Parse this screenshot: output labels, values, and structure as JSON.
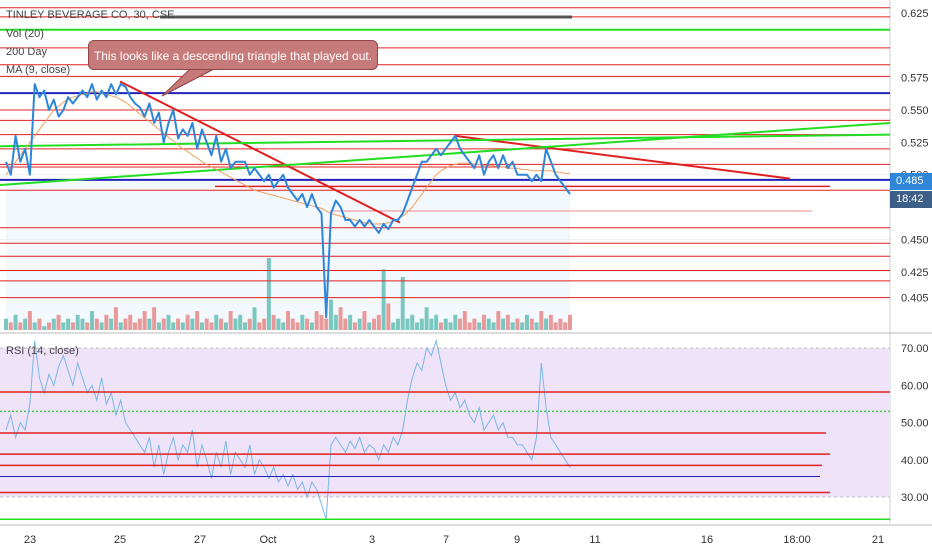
{
  "header": {
    "symbol_line": "TINLEY BEVERAGE CO, 30, CSE",
    "vol_label": "Vol (20)",
    "ma200_label": "200 Day",
    "ma9_label": "MA (9, close)",
    "rsi_label": "RSI (14, close)"
  },
  "annotation": {
    "text": "This looks like a descending triangle that played out."
  },
  "price_badges": {
    "last_price": "0.485",
    "countdown": "18:42"
  },
  "colors": {
    "price": "#2f86d8",
    "ma": "#f0a060",
    "hline_red": "#e02020",
    "hline_green": "#22dd22",
    "hline_blue": "#2222bb",
    "vol_up": "#7ac7c0",
    "vol_down": "#e89a9a",
    "rsi": "#7ab6e6",
    "rsi_band": "#efe3fa",
    "badge_blue": "#2f86d8",
    "badge_dark": "#3d5e86"
  },
  "chart_data": [
    {
      "type": "line",
      "title": "TINLEY BEVERAGE CO, 30, CSE",
      "ylim": [
        0.38,
        0.635
      ],
      "y_ticks": [
        0.625,
        0.575,
        0.55,
        0.525,
        0.5,
        0.45,
        0.425,
        0.405
      ],
      "x_ticks": [
        "23",
        "25",
        "27",
        "Oct",
        "3",
        "7",
        "9",
        "11",
        "16",
        "18:00",
        "21"
      ],
      "series": [
        {
          "values": [
            0.51,
            0.5,
            0.53,
            0.51,
            0.52,
            0.5,
            0.57,
            0.56,
            0.565,
            0.55,
            0.558,
            0.545,
            0.55,
            0.56,
            0.555,
            0.56,
            0.565,
            0.56,
            0.57,
            0.558,
            0.565,
            0.56,
            0.57,
            0.562,
            0.57,
            0.568,
            0.56,
            0.555,
            0.552,
            0.545,
            0.555,
            0.54,
            0.548,
            0.525,
            0.54,
            0.55,
            0.528,
            0.535,
            0.53,
            0.54,
            0.52,
            0.535,
            0.525,
            0.515,
            0.53,
            0.51,
            0.52,
            0.505,
            0.51,
            0.51,
            0.51,
            0.5,
            0.505,
            0.5,
            0.495,
            0.5,
            0.49,
            0.495,
            0.5,
            0.49,
            0.485,
            0.48,
            0.485,
            0.475,
            0.485,
            0.475,
            0.47,
            0.39,
            0.47,
            0.48,
            0.475,
            0.465,
            0.465,
            0.46,
            0.465,
            0.46,
            0.465,
            0.46,
            0.455,
            0.462,
            0.458,
            0.465,
            0.465,
            0.47,
            0.48,
            0.49,
            0.5,
            0.51,
            0.51,
            0.515,
            0.52,
            0.515,
            0.52,
            0.525,
            0.53,
            0.52,
            0.515,
            0.51,
            0.505,
            0.515,
            0.5,
            0.51,
            0.515,
            0.505,
            0.515,
            0.505,
            0.51,
            0.5,
            0.5,
            0.5,
            0.495,
            0.5,
            0.495,
            0.52,
            0.51,
            0.5,
            0.495,
            0.49,
            0.485
          ]
        },
        {
          "values": [
            0.5,
            0.505,
            0.51,
            0.515,
            0.52,
            0.525,
            0.53,
            0.535,
            0.54,
            0.545,
            0.55,
            0.553,
            0.556,
            0.558,
            0.56,
            0.561,
            0.562,
            0.563,
            0.564,
            0.564,
            0.563,
            0.562,
            0.561,
            0.56,
            0.558,
            0.556,
            0.553,
            0.55,
            0.547,
            0.544,
            0.541,
            0.538,
            0.535,
            0.532,
            0.529,
            0.526,
            0.523,
            0.52,
            0.518,
            0.515,
            0.513,
            0.51,
            0.508,
            0.506,
            0.504,
            0.502,
            0.5,
            0.498,
            0.496,
            0.494,
            0.492,
            0.49,
            0.488,
            0.487,
            0.486,
            0.485,
            0.484,
            0.483,
            0.482,
            0.481,
            0.48,
            0.479,
            0.478,
            0.477,
            0.476,
            0.475,
            0.474,
            0.472,
            0.47,
            0.469,
            0.468,
            0.467,
            0.466,
            0.465,
            0.464,
            0.463,
            0.462,
            0.462,
            0.462,
            0.462,
            0.463,
            0.464,
            0.466,
            0.468,
            0.471,
            0.475,
            0.48,
            0.485,
            0.49,
            0.495,
            0.5,
            0.503,
            0.505,
            0.507,
            0.508,
            0.509,
            0.509,
            0.509,
            0.508,
            0.508,
            0.507,
            0.507,
            0.507,
            0.506,
            0.506,
            0.505,
            0.505,
            0.505,
            0.504,
            0.504,
            0.503,
            0.503,
            0.503,
            0.503,
            0.503,
            0.502,
            0.502,
            0.501,
            0.501
          ]
        }
      ],
      "horizontal_levels": [
        {
          "y": 0.629,
          "color": "red"
        },
        {
          "y": 0.622,
          "color": "red"
        },
        {
          "y": 0.612,
          "color": "green"
        },
        {
          "y": 0.598,
          "color": "red"
        },
        {
          "y": 0.585,
          "color": "red"
        },
        {
          "y": 0.576,
          "color": "red"
        },
        {
          "y": 0.563,
          "color": "blue"
        },
        {
          "y": 0.55,
          "color": "red"
        },
        {
          "y": 0.542,
          "color": "red"
        },
        {
          "y": 0.531,
          "color": "red"
        },
        {
          "y": 0.52,
          "color": "red"
        },
        {
          "y": 0.508,
          "color": "red"
        },
        {
          "y": 0.496,
          "color": "blue"
        },
        {
          "y": 0.488,
          "color": "red"
        },
        {
          "y": 0.459,
          "color": "red"
        },
        {
          "y": 0.447,
          "color": "red"
        },
        {
          "y": 0.437,
          "color": "red"
        },
        {
          "y": 0.426,
          "color": "red"
        },
        {
          "y": 0.418,
          "color": "red"
        },
        {
          "y": 0.405,
          "color": "red"
        }
      ],
      "trendlines": [
        {
          "color": "red",
          "from": [
            0.565,
            0.57
          ],
          "to": [
            0.565,
            0.465
          ]
        },
        {
          "color": "red",
          "from": [
            0.525,
            0.53
          ],
          "to": [
            0.525,
            0.497
          ]
        },
        {
          "color": "green",
          "from": [
            0.488,
            0.54
          ],
          "to": [
            0.488,
            0.54
          ]
        }
      ],
      "volume": [
        3,
        2,
        4,
        2,
        3,
        5,
        2,
        3,
        1,
        2,
        3,
        4,
        2,
        3,
        2,
        4,
        3,
        2,
        5,
        3,
        2,
        4,
        3,
        6,
        2,
        3,
        4,
        2,
        3,
        5,
        3,
        6,
        2,
        3,
        4,
        2,
        3,
        2,
        4,
        3,
        5,
        2,
        3,
        2,
        4,
        3,
        2,
        5,
        3,
        4,
        2,
        3,
        6,
        2,
        3,
        19,
        4,
        3,
        2,
        5,
        3,
        2,
        4,
        3,
        2,
        5,
        4,
        3,
        8,
        4,
        6,
        3,
        4,
        2,
        3,
        5,
        2,
        3,
        4,
        16,
        7,
        2,
        3,
        14,
        3,
        4,
        2,
        3,
        6,
        3,
        4,
        2,
        3,
        2,
        4,
        3,
        5,
        2,
        3,
        2,
        4,
        3,
        2,
        5,
        3,
        4,
        2,
        3,
        2,
        4,
        3,
        2,
        5,
        3,
        4,
        2,
        3,
        2,
        4
      ]
    },
    {
      "type": "line",
      "title": "RSI (14, close)",
      "ylim": [
        23,
        73
      ],
      "y_ticks": [
        70,
        60,
        50,
        40,
        30
      ],
      "band": [
        30,
        70
      ],
      "midline": 53,
      "series": [
        {
          "values": [
            48,
            52,
            46,
            50,
            48,
            55,
            72,
            62,
            58,
            63,
            60,
            65,
            68,
            64,
            60,
            66,
            62,
            58,
            60,
            56,
            62,
            55,
            58,
            52,
            56,
            50,
            48,
            46,
            44,
            42,
            46,
            38,
            44,
            36,
            42,
            46,
            40,
            44,
            42,
            48,
            38,
            44,
            40,
            35,
            42,
            38,
            45,
            36,
            42,
            40,
            38,
            44,
            36,
            40,
            38,
            35,
            38,
            34,
            36,
            33,
            36,
            32,
            34,
            30,
            34,
            32,
            28,
            24,
            44,
            46,
            44,
            42,
            45,
            43,
            46,
            42,
            44,
            43,
            40,
            44,
            42,
            46,
            44,
            48,
            56,
            62,
            66,
            64,
            70,
            68,
            72,
            66,
            60,
            56,
            58,
            54,
            56,
            52,
            50,
            54,
            48,
            50,
            52,
            48,
            50,
            46,
            46,
            44,
            44,
            42,
            40,
            46,
            66,
            54,
            46,
            44,
            42,
            40,
            38
          ]
        }
      ],
      "horizontal_levels": [
        {
          "y": 58.2,
          "color": "red"
        },
        {
          "y": 47.2,
          "color": "red"
        },
        {
          "y": 41.5,
          "color": "red"
        },
        {
          "y": 38.5,
          "color": "red"
        },
        {
          "y": 35.5,
          "color": "blue"
        },
        {
          "y": 31.2,
          "color": "red"
        },
        {
          "y": 24.0,
          "color": "green"
        }
      ]
    }
  ]
}
